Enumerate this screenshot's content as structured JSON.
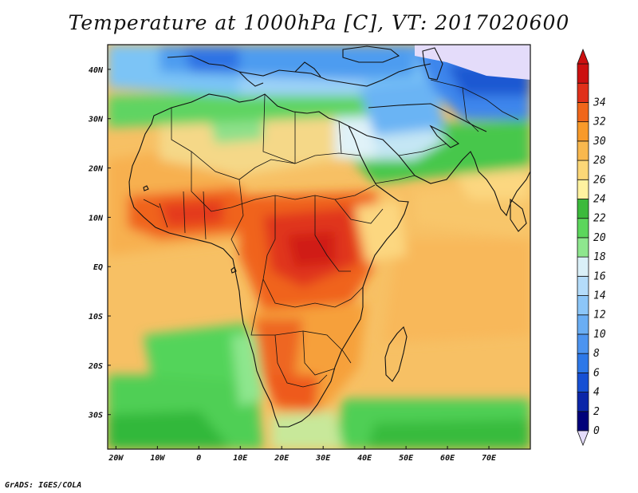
{
  "title": "Temperature at 1000hPa [C], VT: 2017020600",
  "footer": "GrADS: IGES/COLA",
  "map": {
    "lon_range": [
      -22,
      80
    ],
    "lat_range": [
      -37,
      45
    ],
    "lon_ticks": [
      "20W",
      "10W",
      "0",
      "10E",
      "20E",
      "30E",
      "40E",
      "50E",
      "60E",
      "70E"
    ],
    "lat_ticks": [
      "40N",
      "30N",
      "20N",
      "10N",
      "EQ",
      "10S",
      "20S",
      "30S"
    ],
    "features": [
      "temperature-field",
      "coastlines",
      "country-borders"
    ]
  },
  "colorbar": {
    "levels": [
      "0",
      "2",
      "4",
      "6",
      "8",
      "10",
      "12",
      "14",
      "16",
      "18",
      "20",
      "22",
      "24",
      "26",
      "28",
      "30",
      "32",
      "34"
    ],
    "colors": [
      "#00007a",
      "#0b26a8",
      "#1650d4",
      "#2d78e8",
      "#4c94f0",
      "#6aaef4",
      "#8cc6f8",
      "#b4dcfa",
      "#daf0f8",
      "#8ee68e",
      "#5cd65c",
      "#3cba3c",
      "#fff2a0",
      "#fcd777",
      "#f9b84e",
      "#f89a2a",
      "#f0661a",
      "#e0301a",
      "#cc1010"
    ],
    "under_color": "#e4dcfa",
    "over_color": "#cc1010"
  }
}
